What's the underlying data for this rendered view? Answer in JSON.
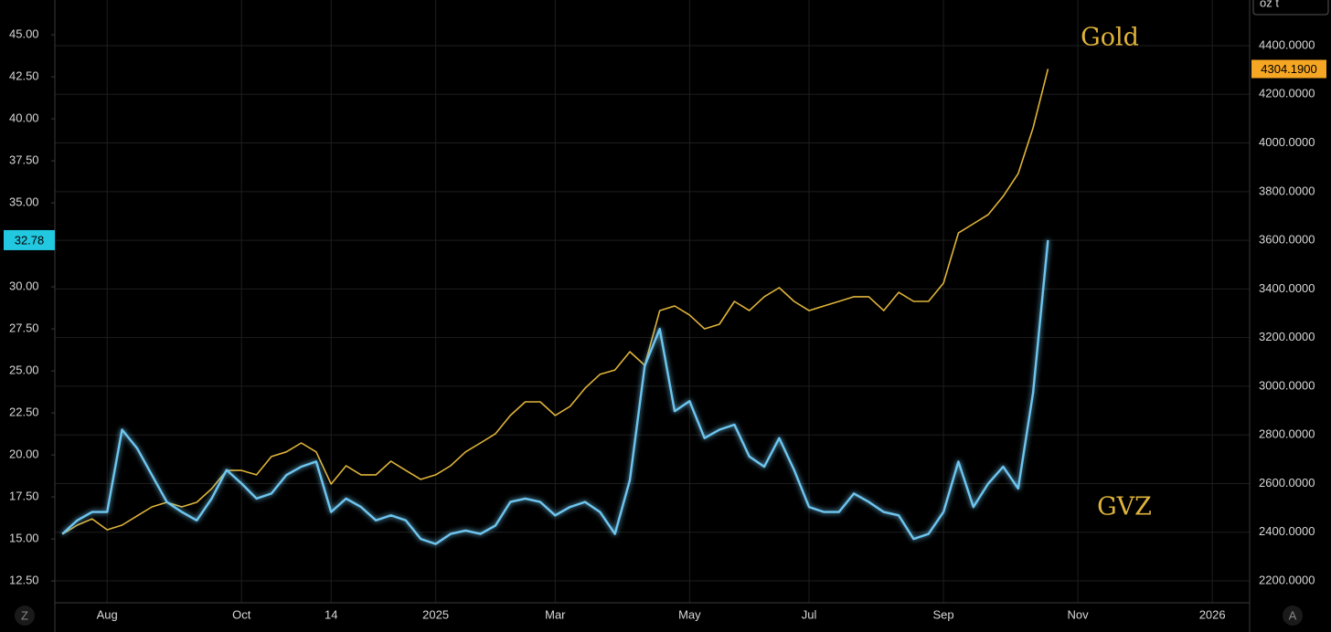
{
  "chart_data": {
    "type": "line",
    "categories": [
      null,
      null,
      null,
      "Aug",
      null,
      null,
      null,
      null,
      null,
      null,
      null,
      null,
      "Oct",
      null,
      null,
      null,
      null,
      null,
      "14",
      null,
      null,
      null,
      null,
      null,
      null,
      "2025",
      null,
      null,
      null,
      null,
      null,
      null,
      null,
      "Mar",
      null,
      null,
      null,
      null,
      null,
      null,
      null,
      null,
      "May",
      null,
      null,
      null,
      null,
      null,
      null,
      null,
      "Jul",
      null,
      null,
      null,
      null,
      null,
      null,
      null,
      null,
      "Sep",
      null,
      null,
      null,
      null,
      null,
      null,
      null,
      null,
      "Nov",
      null,
      null,
      null,
      null,
      null,
      null,
      null,
      null,
      "2026",
      null,
      null
    ],
    "series": [
      {
        "name": "Gold",
        "color": "#e0b43a",
        "axis": "y2",
        "last_value_label": "4304.1900",
        "values": [
          2392,
          2429,
          2455,
          2410,
          2429,
          2467,
          2504,
          2523,
          2504,
          2523,
          2579,
          2654,
          2654,
          2636,
          2711,
          2730,
          2767,
          2730,
          2598,
          2673,
          2636,
          2636,
          2692,
          2654,
          2617,
          2636,
          2673,
          2730,
          2767,
          2805,
          2880,
          2936,
          2936,
          2880,
          2917,
          2992,
          3049,
          3067,
          3142,
          3086,
          3311,
          3330,
          3293,
          3236,
          3255,
          3349,
          3311,
          3368,
          3405,
          3349,
          3311,
          3330,
          3349,
          3368,
          3368,
          3311,
          3386,
          3349,
          3349,
          3424,
          3630,
          3668,
          3706,
          3781,
          3874,
          4062,
          4304.19,
          null,
          null,
          null,
          null,
          null,
          null,
          null,
          null,
          null,
          null,
          null,
          null,
          null
        ]
      },
      {
        "name": "GVZ",
        "color": "#6ec6f0",
        "values": [
          15.3,
          16.1,
          16.6,
          16.6,
          21.5,
          20.4,
          18.8,
          17.2,
          16.6,
          16.1,
          17.4,
          19.1,
          18.3,
          17.4,
          17.7,
          18.8,
          19.3,
          19.6,
          16.6,
          17.4,
          16.9,
          16.1,
          16.4,
          16.1,
          15.0,
          14.7,
          15.3,
          15.5,
          15.3,
          15.8,
          17.2,
          17.4,
          17.2,
          16.4,
          16.9,
          17.2,
          16.6,
          15.3,
          18.5,
          25.3,
          27.5,
          22.6,
          23.2,
          21.0,
          21.5,
          21.8,
          19.9,
          19.3,
          21.0,
          19.1,
          16.9,
          16.6,
          16.6,
          17.7,
          17.2,
          16.6,
          16.4,
          15.0,
          15.3,
          16.6,
          19.6,
          16.9,
          18.3,
          19.3,
          18.0,
          23.7,
          32.78,
          null,
          null,
          null,
          null,
          null,
          null,
          null,
          null,
          null,
          null,
          null,
          null,
          null
        ]
      }
    ],
    "ylim": [
      11.2,
      47.07
    ],
    "yticks": [
      {
        "value": 12.5,
        "label": "12.50"
      },
      {
        "value": 15,
        "label": "15.00"
      },
      {
        "value": 17.5,
        "label": "17.50"
      },
      {
        "value": 20,
        "label": "20.00"
      },
      {
        "value": 22.5,
        "label": "22.50"
      },
      {
        "value": 25,
        "label": "25.00"
      },
      {
        "value": 27.5,
        "label": "27.50"
      },
      {
        "value": 30,
        "label": "30.00"
      },
      {
        "value": 32.5,
        "label": "32.50"
      },
      {
        "value": 35,
        "label": "35.00"
      },
      {
        "value": 37.5,
        "label": "37.50"
      },
      {
        "value": 40,
        "label": "40.00"
      },
      {
        "value": 42.5,
        "label": "42.50"
      },
      {
        "value": 45,
        "label": "45.00"
      }
    ],
    "y2lim": [
      2110,
      4587.7
    ],
    "y2ticks": [
      {
        "value": 2200,
        "label": "2200.0000"
      },
      {
        "value": 2400,
        "label": "2400.0000"
      },
      {
        "value": 2600,
        "label": "2600.0000"
      },
      {
        "value": 2800,
        "label": "2800.0000"
      },
      {
        "value": 3000,
        "label": "3000.0000"
      },
      {
        "value": 3200,
        "label": "3200.0000"
      },
      {
        "value": 3400,
        "label": "3400.0000"
      },
      {
        "value": 3600,
        "label": "3600.0000"
      },
      {
        "value": 3800,
        "label": "3800.0000"
      },
      {
        "value": 4000,
        "label": "4000.0000"
      },
      {
        "value": 4200,
        "label": "4200.0000"
      },
      {
        "value": 4400,
        "label": "4400.0000"
      }
    ],
    "y2label": "oz t",
    "grid": true
  },
  "ui_buttons": [
    "Z",
    "A"
  ]
}
